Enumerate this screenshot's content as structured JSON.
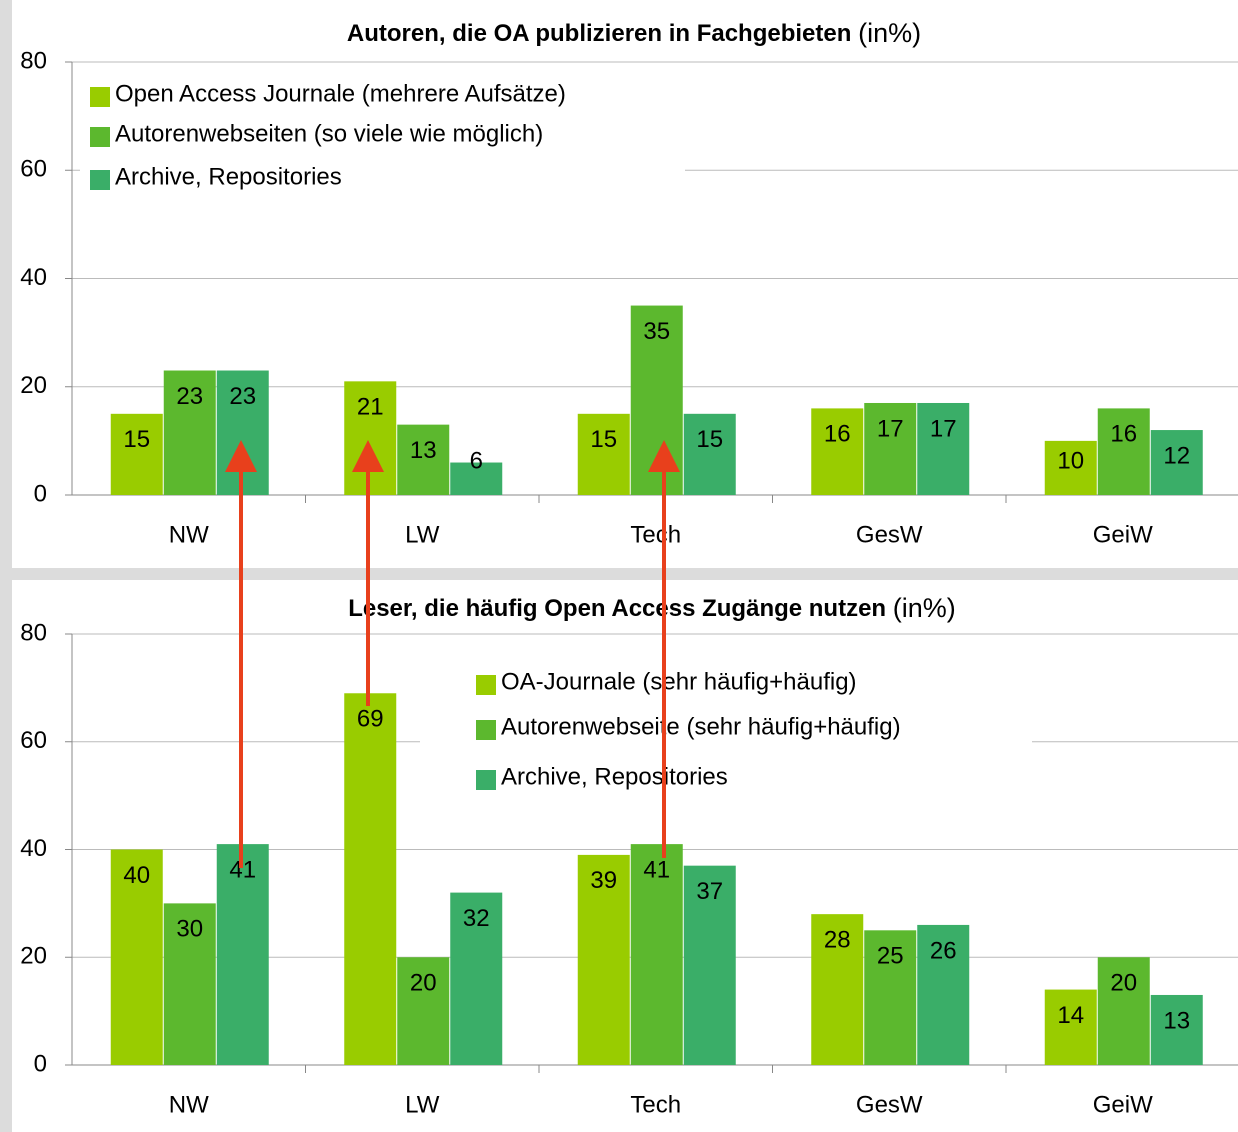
{
  "chart_data": [
    {
      "type": "bar",
      "title": "Autoren, die OA publizieren in Fachgebieten",
      "title_unit": "(in%)",
      "categories": [
        "NW",
        "LW",
        "Tech",
        "GesW",
        "GeiW"
      ],
      "series": [
        {
          "name": "Open Access Journale (mehrere Aufsätze)",
          "color": "#99cc00",
          "values": [
            15,
            21,
            15,
            16,
            10
          ]
        },
        {
          "name": "Autorenwebseiten (so viele wie möglich)",
          "color": "#5cb82e",
          "values": [
            23,
            13,
            35,
            17,
            16
          ]
        },
        {
          "name": "Archive, Repositories",
          "color": "#3aae68",
          "values": [
            23,
            6,
            15,
            17,
            12
          ]
        }
      ],
      "ylim": [
        0,
        80
      ],
      "yticks": [
        0,
        20,
        40,
        60,
        80
      ],
      "grid": true,
      "legend": "upper left"
    },
    {
      "type": "bar",
      "title": "Leser, die häufig Open Access Zugänge nutzen",
      "title_unit": "(in%)",
      "categories": [
        "NW",
        "LW",
        "Tech",
        "GesW",
        "GeiW"
      ],
      "series": [
        {
          "name": "OA-Journale (sehr häufig+häufig)",
          "color": "#99cc00",
          "values": [
            40,
            69,
            39,
            28,
            14
          ]
        },
        {
          "name": "Autorenwebseite (sehr häufig+häufig)",
          "color": "#5cb82e",
          "values": [
            30,
            20,
            41,
            25,
            20
          ]
        },
        {
          "name": "Archive, Repositories",
          "color": "#3aae68",
          "values": [
            41,
            32,
            37,
            26,
            13
          ]
        }
      ],
      "ylim": [
        0,
        80
      ],
      "yticks": [
        0,
        20,
        40,
        60,
        80
      ],
      "grid": true,
      "legend": "upper center"
    }
  ]
}
